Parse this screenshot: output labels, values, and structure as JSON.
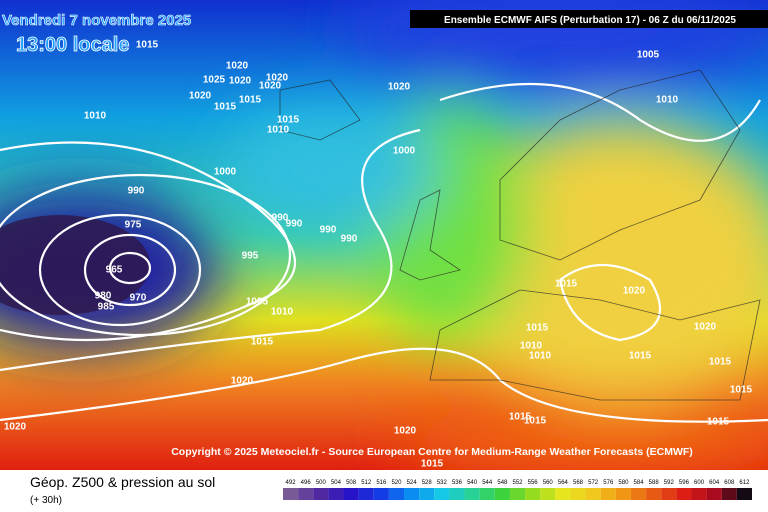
{
  "header": {
    "date": "Vendredi 7 novembre 2025",
    "time": "13:00 locale",
    "model": "Ensemble ECMWF AIFS  (Perturbation 17)  -  06 Z du 06/11/2025"
  },
  "copyright": "Copyright © 2025 Meteociel.fr - Source European Centre for Medium-Range Weather Forecasts (ECMWF)",
  "legend": {
    "title": "Géop. Z500 & pression au sol",
    "subtitle": "(+ 30h)",
    "scale": [
      492,
      496,
      500,
      504,
      508,
      512,
      516,
      520,
      524,
      528,
      532,
      536,
      540,
      544,
      548,
      552,
      556,
      560,
      564,
      568,
      572,
      576,
      580,
      584,
      588,
      592,
      596,
      600,
      604,
      608,
      612
    ]
  },
  "isobar_labels": [
    1005,
    1010,
    1020,
    1025,
    1020,
    1020,
    1020,
    1020,
    1015,
    1015,
    1020,
    1010,
    1015,
    1010,
    1000,
    1000,
    990,
    975,
    990,
    990,
    990,
    990,
    995,
    965,
    980,
    970,
    985,
    1005,
    1010,
    1015,
    1020,
    1015,
    1010,
    1010,
    1015,
    1015,
    1020,
    1015,
    1015,
    1020,
    1020,
    1015,
    1015,
    1020,
    1015,
    1015,
    1015
  ]
}
